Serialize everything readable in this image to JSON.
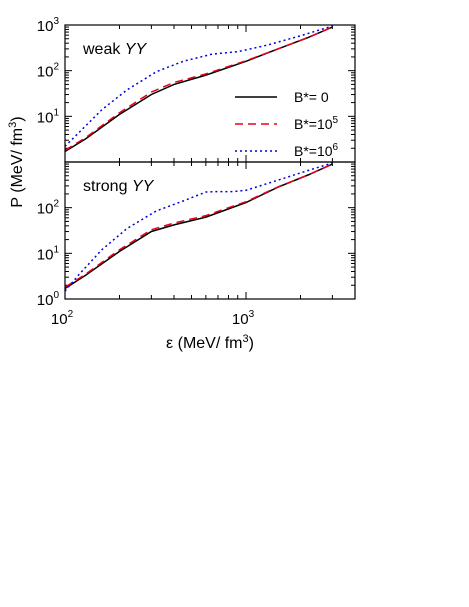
{
  "chart_data": {
    "type": "line",
    "xscale": "log",
    "yscale": "log",
    "xlim": [
      100,
      4000
    ],
    "ylim": [
      1,
      1000
    ],
    "xlabel": {
      "base": "ε (MeV/ fm",
      "sup": "3",
      "end": ")"
    },
    "ylabel": {
      "base": "P (MeV/ fm",
      "sup": "3",
      "end": ")"
    },
    "x_ticks": [
      {
        "base": "10",
        "exp": "2"
      },
      {
        "base": "10",
        "exp": "3"
      }
    ],
    "y_ticks_top": [
      {
        "base": "10",
        "exp": "1"
      },
      {
        "base": "10",
        "exp": "2"
      },
      {
        "base": "10",
        "exp": "3"
      }
    ],
    "y_ticks_bottom": [
      {
        "base": "10",
        "exp": "0"
      },
      {
        "base": "10",
        "exp": "1"
      },
      {
        "base": "10",
        "exp": "2"
      }
    ],
    "legend": [
      {
        "pre": "B*= 0",
        "sup": "",
        "color": "#000000",
        "dash": "solid"
      },
      {
        "pre": "B*=10",
        "sup": "5",
        "color": "#e8001c",
        "dash": "dashed"
      },
      {
        "pre": "B*=10",
        "sup": "6",
        "color": "#0000e0",
        "dash": "dotted"
      }
    ],
    "panels": [
      {
        "label": {
          "pre": "weak ",
          "ital": "YY"
        },
        "series": [
          {
            "x": [
              100,
              130,
              200,
              300,
              400,
              600,
              1000,
              1500,
              2200,
              3000
            ],
            "y": [
              1.7,
              3.2,
              11,
              30,
              50,
              80,
              160,
              300,
              530,
              900
            ]
          },
          {
            "x": [
              100,
              130,
              200,
              300,
              400,
              600,
              1000,
              1500,
              2200,
              3000
            ],
            "y": [
              1.8,
              3.4,
              12,
              34,
              55,
              85,
              165,
              300,
              530,
              900
            ]
          },
          {
            "x": [
              100,
              120,
              160,
              220,
              320,
              450,
              650,
              900,
              1300,
              2000,
              3000
            ],
            "y": [
              2.2,
              4.5,
              14,
              38,
              95,
              160,
              230,
              260,
              360,
              580,
              950
            ]
          }
        ]
      },
      {
        "label": {
          "pre": "strong ",
          "ital": "YY"
        },
        "series": [
          {
            "x": [
              100,
              130,
              200,
              300,
              400,
              600,
              1000,
              1500,
              2200,
              3000
            ],
            "y": [
              1.7,
              3.3,
              11,
              30,
              42,
              62,
              130,
              280,
              520,
              900
            ]
          },
          {
            "x": [
              100,
              130,
              200,
              300,
              400,
              600,
              1000,
              1500,
              2200,
              3000
            ],
            "y": [
              1.8,
              3.5,
              12,
              33,
              46,
              67,
              135,
              285,
              520,
              900
            ]
          },
          {
            "x": [
              100,
              120,
              160,
              220,
              320,
              450,
              600,
              700,
              850,
              1000,
              1500,
              2200,
              3000
            ],
            "y": [
              1.5,
              3.5,
              12,
              35,
              85,
              140,
              220,
              225,
              225,
              240,
              400,
              650,
              950
            ]
          }
        ]
      }
    ]
  }
}
